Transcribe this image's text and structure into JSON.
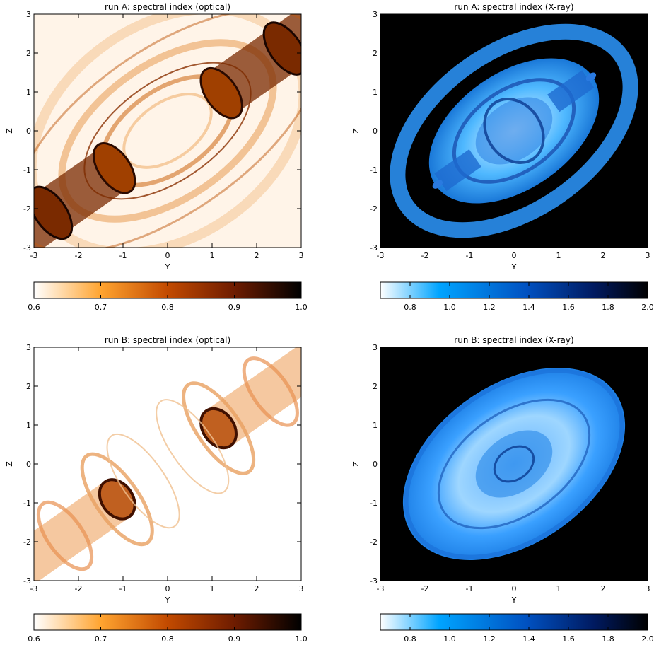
{
  "panels": [
    {
      "title": "run A: spectral index (optical)",
      "colormap": "optical",
      "xlabel": "Y",
      "ylabel": "Z",
      "xticks": [
        "-3",
        "-2",
        "-1",
        "0",
        "1",
        "2",
        "3"
      ],
      "yticks": [
        "-3",
        "-2",
        "-1",
        "0",
        "1",
        "2",
        "3"
      ],
      "colorbar_ticks": [
        "0.6",
        "0.7",
        "0.8",
        "0.9",
        "1.0"
      ],
      "colorbar_range": [
        0.6,
        1.0
      ]
    },
    {
      "title": "run A: spectral index (X-ray)",
      "colormap": "xray",
      "xlabel": "Y",
      "ylabel": "Z",
      "xticks": [
        "-3",
        "-2",
        "-1",
        "0",
        "1",
        "2",
        "3"
      ],
      "yticks": [
        "-3",
        "-2",
        "-1",
        "0",
        "1",
        "2",
        "3"
      ],
      "colorbar_ticks": [
        "0.8",
        "1.0",
        "1.2",
        "1.4",
        "1.6",
        "1.8",
        "2.0"
      ],
      "colorbar_range": [
        0.65,
        2.0
      ]
    },
    {
      "title": "run B: spectral index (optical)",
      "colormap": "optical",
      "xlabel": "Y",
      "ylabel": "Z",
      "xticks": [
        "-3",
        "-2",
        "-1",
        "0",
        "1",
        "2",
        "3"
      ],
      "yticks": [
        "-3",
        "-2",
        "-1",
        "0",
        "1",
        "2",
        "3"
      ],
      "colorbar_ticks": [
        "0.6",
        "0.7",
        "0.8",
        "0.9",
        "1.0"
      ],
      "colorbar_range": [
        0.6,
        1.0
      ]
    },
    {
      "title": "run B: spectral index (X-ray)",
      "colormap": "xray",
      "xlabel": "Y",
      "ylabel": "Z",
      "xticks": [
        "-3",
        "-2",
        "-1",
        "0",
        "1",
        "2",
        "3"
      ],
      "yticks": [
        "-3",
        "-2",
        "-1",
        "0",
        "1",
        "2",
        "3"
      ],
      "colorbar_ticks": [
        "0.8",
        "1.0",
        "1.2",
        "1.4",
        "1.6",
        "1.8",
        "2.0"
      ],
      "colorbar_range": [
        0.65,
        2.0
      ]
    }
  ],
  "colors": {
    "optical_low": "#ffffff",
    "optical_mid1": "#ffa430",
    "optical_mid2": "#c24a00",
    "optical_mid3": "#6e1c00",
    "optical_high": "#000000",
    "xray_low": "#ffffff",
    "xray_mid1": "#00a4ff",
    "xray_mid2": "#0050c0",
    "xray_mid3": "#001a60",
    "xray_high": "#000000"
  }
}
